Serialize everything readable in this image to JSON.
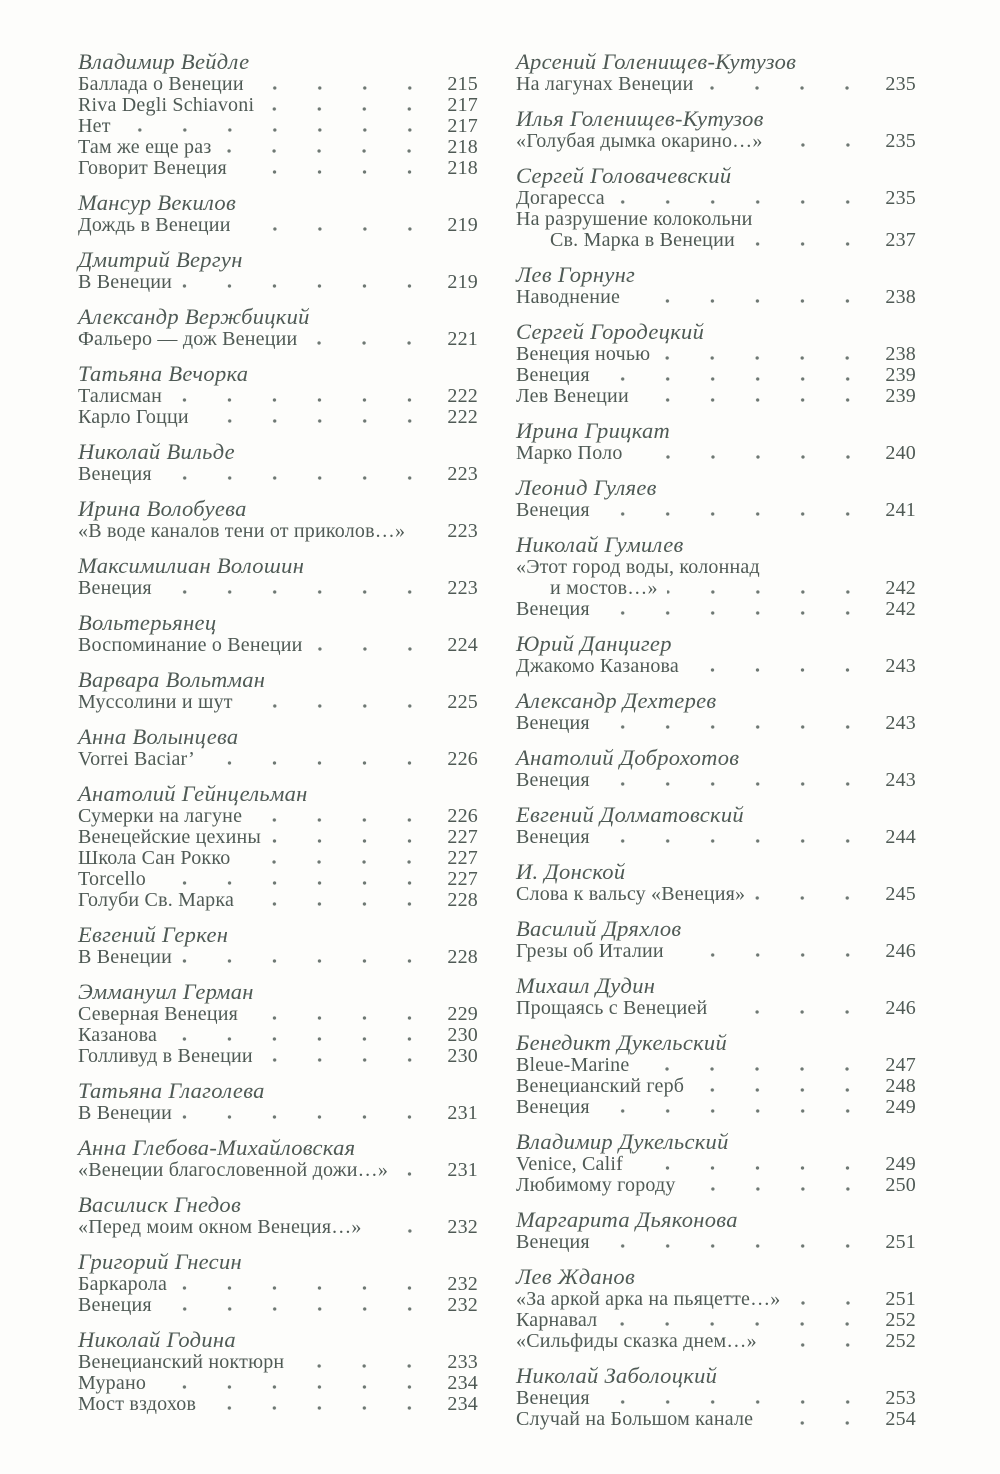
{
  "page_background": "#fdfdfb",
  "text_color": "#4f5a55",
  "leader_dot_color": "#6e7873",
  "document_type": "table-of-contents",
  "columns": [
    {
      "groups": [
        {
          "author": "Владимир Вейдле",
          "items": [
            {
              "title": "Баллада о Венеции",
              "page": "215"
            },
            {
              "title": "Riva Degli Schiavoni",
              "page": "217"
            },
            {
              "title": "Нет",
              "page": "217"
            },
            {
              "title": "Там же еще раз",
              "page": "218"
            },
            {
              "title": "Говорит Венеция",
              "page": "218"
            }
          ]
        },
        {
          "author": "Мансур Векилов",
          "items": [
            {
              "title": "Дождь в Венеции",
              "page": "219"
            }
          ]
        },
        {
          "author": "Дмитрий Вергун",
          "items": [
            {
              "title": "В Венеции",
              "page": "219"
            }
          ]
        },
        {
          "author": "Александр Вержбицкий",
          "items": [
            {
              "title": "Фальеро — дож Венеции",
              "page": "221"
            }
          ]
        },
        {
          "author": "Татьяна Вечорка",
          "items": [
            {
              "title": "Талисман",
              "page": "222"
            },
            {
              "title": "Карло Гоцци",
              "page": "222"
            }
          ]
        },
        {
          "author": "Николай Вильде",
          "items": [
            {
              "title": "Венеция",
              "page": "223"
            }
          ]
        },
        {
          "author": "Ирина Волобуева",
          "items": [
            {
              "title": "«В воде каналов тени от приколов…»",
              "page": "223"
            }
          ]
        },
        {
          "author": "Максимилиан Волошин",
          "items": [
            {
              "title": "Венеция",
              "page": "223"
            }
          ]
        },
        {
          "author": "Вольтерьянец",
          "items": [
            {
              "title": "Воспоминание о Венеции",
              "page": "224"
            }
          ]
        },
        {
          "author": "Варвара Вольтман",
          "items": [
            {
              "title": "Муссолини и шут",
              "page": "225"
            }
          ]
        },
        {
          "author": "Анна Волынцева",
          "items": [
            {
              "title": "Vorrei Baciar’",
              "page": "226"
            }
          ]
        },
        {
          "author": "Анатолий Гейнцельман",
          "items": [
            {
              "title": "Сумерки на лагуне",
              "page": "226"
            },
            {
              "title": "Венецейские цехины",
              "page": "227"
            },
            {
              "title": "Школа Сан Рокко",
              "page": "227"
            },
            {
              "title": "Torcello",
              "page": "227"
            },
            {
              "title": "Голуби Св. Марка",
              "page": "228"
            }
          ]
        },
        {
          "author": "Евгений Геркен",
          "items": [
            {
              "title": "В Венеции",
              "page": "228"
            }
          ]
        },
        {
          "author": "Эммануил Герман",
          "items": [
            {
              "title": "Северная Венеция",
              "page": "229"
            },
            {
              "title": "Казанова",
              "page": "230"
            },
            {
              "title": "Голливуд в Венеции",
              "page": "230"
            }
          ]
        },
        {
          "author": "Татьяна Глаголева",
          "items": [
            {
              "title": "В Венеции",
              "page": "231"
            }
          ]
        },
        {
          "author": "Анна Глебова-Михайловская",
          "items": [
            {
              "title": "«Венеции благословенной дожи…»",
              "page": "231"
            }
          ]
        },
        {
          "author": "Василиск Гнедов",
          "items": [
            {
              "title": "«Перед моим окном Венеция…»",
              "page": "232"
            }
          ]
        },
        {
          "author": "Григорий Гнесин",
          "items": [
            {
              "title": "Баркарола",
              "page": "232"
            },
            {
              "title": "Венеция",
              "page": "232"
            }
          ]
        },
        {
          "author": "Николай Година",
          "items": [
            {
              "title": "Венецианский ноктюрн",
              "page": "233"
            },
            {
              "title": "Мурано",
              "page": "234"
            },
            {
              "title": "Мост вздохов",
              "page": "234"
            }
          ]
        }
      ]
    },
    {
      "groups": [
        {
          "author": "Арсений Голенищев-Кутузов",
          "items": [
            {
              "title": "На лагунах Венеции",
              "page": "235"
            }
          ]
        },
        {
          "author": "Илья Голенищев-Кутузов",
          "items": [
            {
              "title": "«Голубая дымка окарино…»",
              "page": "235"
            }
          ]
        },
        {
          "author": "Сергей Головачевский",
          "items": [
            {
              "title": "Догаресса",
              "page": "235"
            },
            {
              "title": "На разрушение колокольни",
              "title2": "Св. Марка в Венеции",
              "page": "237"
            }
          ]
        },
        {
          "author": "Лев Горнунг",
          "items": [
            {
              "title": "Наводнение",
              "page": "238"
            }
          ]
        },
        {
          "author": "Сергей Городецкий",
          "items": [
            {
              "title": "Венеция ночью",
              "page": "238"
            },
            {
              "title": "Венеция",
              "page": "239"
            },
            {
              "title": "Лев Венеции",
              "page": "239"
            }
          ]
        },
        {
          "author": "Ирина Грицкат",
          "items": [
            {
              "title": "Марко Поло",
              "page": "240"
            }
          ]
        },
        {
          "author": "Леонид Гуляев",
          "items": [
            {
              "title": "Венеция",
              "page": "241"
            }
          ]
        },
        {
          "author": "Николай Гумилев",
          "items": [
            {
              "title": "«Этот город воды, колоннад",
              "title2": "и мостов…»",
              "page": "242"
            },
            {
              "title": "Венеция",
              "page": "242"
            }
          ]
        },
        {
          "author": "Юрий Данцигер",
          "items": [
            {
              "title": "Джакомо Казанова",
              "page": "243"
            }
          ]
        },
        {
          "author": "Александр Дехтерев",
          "items": [
            {
              "title": "Венеция",
              "page": "243"
            }
          ]
        },
        {
          "author": "Анатолий Доброхотов",
          "items": [
            {
              "title": "Венеция",
              "page": "243"
            }
          ]
        },
        {
          "author": "Евгений Долматовский",
          "items": [
            {
              "title": "Венеция",
              "page": "244"
            }
          ]
        },
        {
          "author": "И. Донской",
          "items": [
            {
              "title": "Слова к вальсу «Венеция»",
              "page": "245"
            }
          ]
        },
        {
          "author": "Василий Дряхлов",
          "items": [
            {
              "title": "Грезы об Италии",
              "page": "246"
            }
          ]
        },
        {
          "author": "Михаил Дудин",
          "items": [
            {
              "title": "Прощаясь с Венецией",
              "page": "246"
            }
          ]
        },
        {
          "author": "Бенедикт Дукельский",
          "items": [
            {
              "title": "Bleue-Marine",
              "page": "247"
            },
            {
              "title": "Венецианский герб",
              "page": "248"
            },
            {
              "title": "Венеция",
              "page": "249"
            }
          ]
        },
        {
          "author": "Владимир Дукельский",
          "items": [
            {
              "title": "Venice, Calif",
              "page": "249"
            },
            {
              "title": "Любимому городу",
              "page": "250"
            }
          ]
        },
        {
          "author": "Маргарита Дьяконова",
          "items": [
            {
              "title": "Венеция",
              "page": "251"
            }
          ]
        },
        {
          "author": "Лев Жданов",
          "items": [
            {
              "title": "«За аркой арка на пьяцетте…»",
              "page": "251"
            },
            {
              "title": "Карнавал",
              "page": "252"
            },
            {
              "title": "«Сильфиды сказка днем…»",
              "page": "252"
            }
          ]
        },
        {
          "author": "Николай Заболоцкий",
          "items": [
            {
              "title": "Венеция",
              "page": "253"
            },
            {
              "title": "Случай на Большом канале",
              "page": "254"
            }
          ]
        }
      ]
    }
  ]
}
